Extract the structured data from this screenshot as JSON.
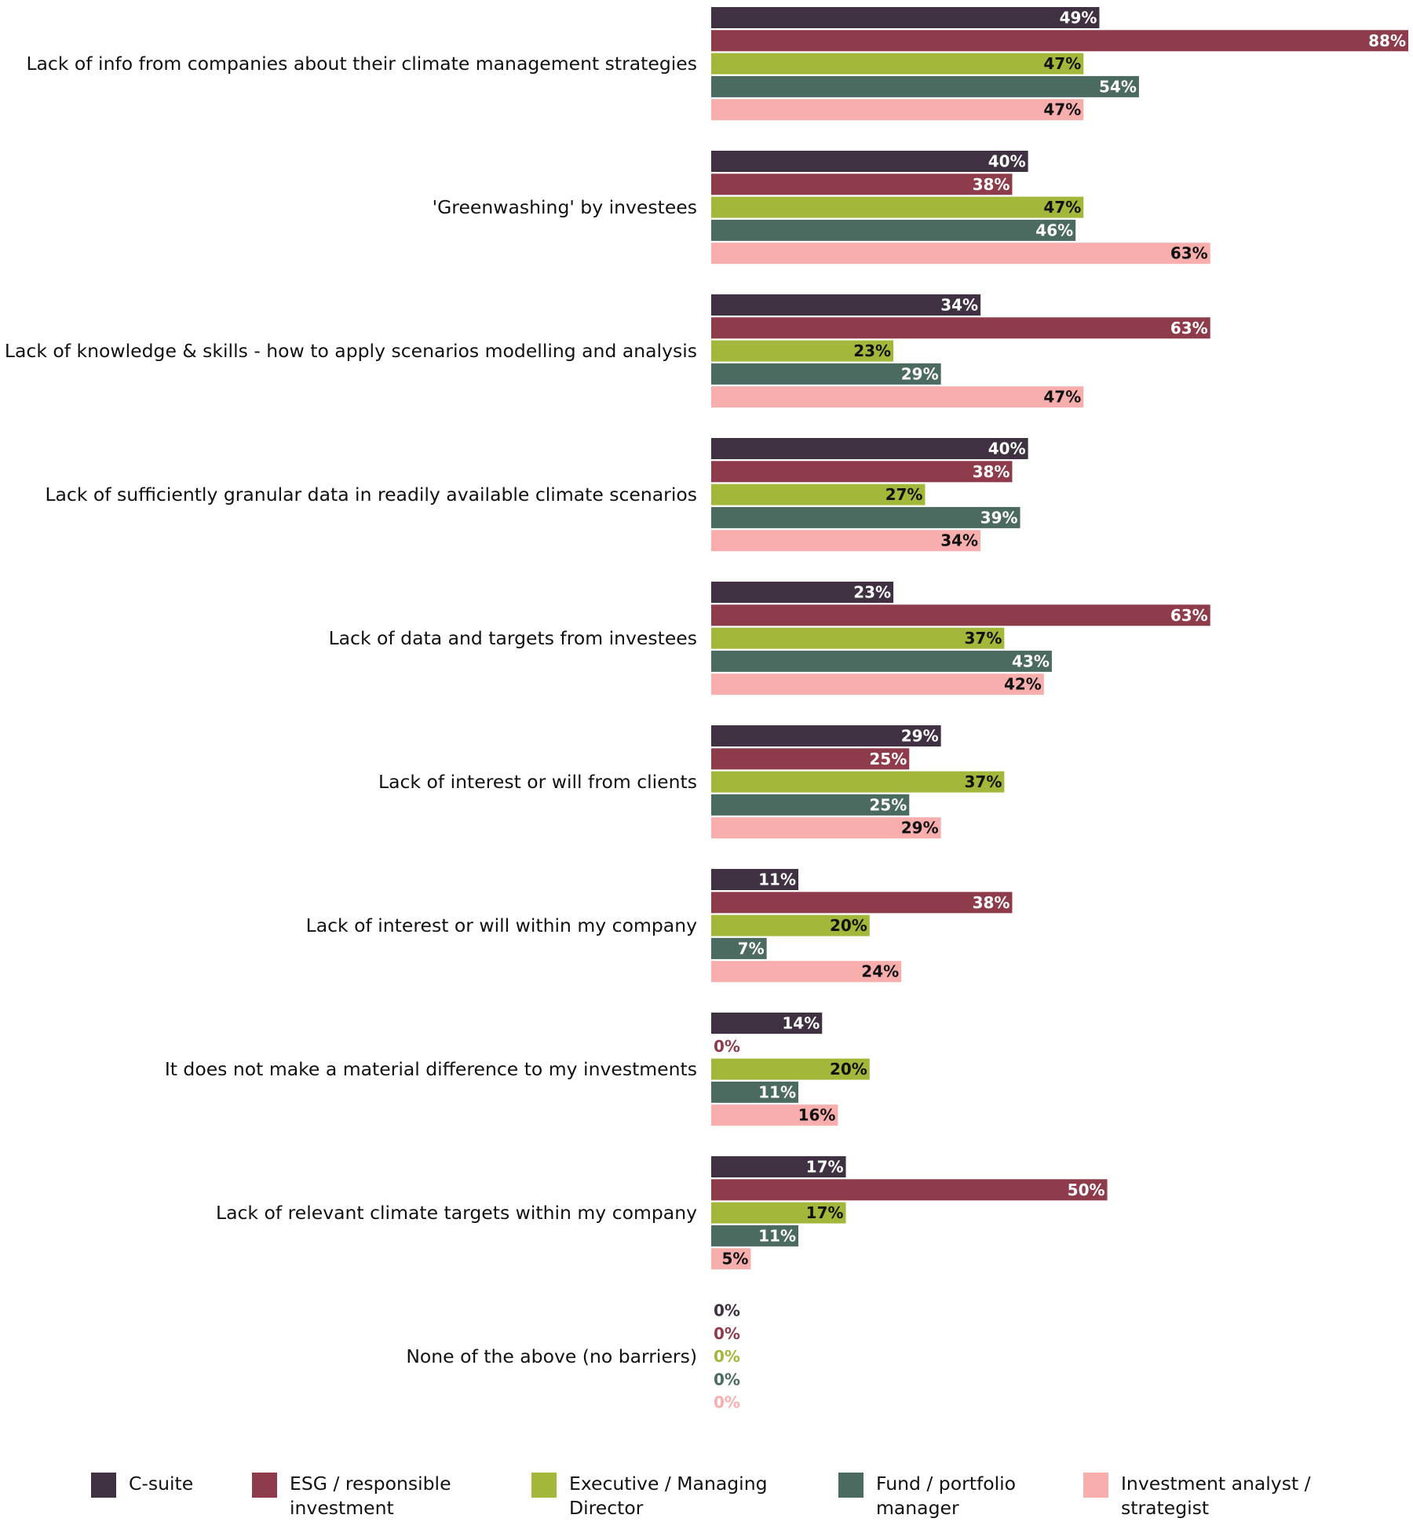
{
  "chart_data": {
    "type": "bar",
    "orientation": "horizontal",
    "categories": [
      "Lack of info from companies about their climate management strategies",
      "'Greenwashing' by investees",
      "Lack of knowledge & skills - how to apply scenarios modelling and analysis",
      "Lack of sufficiently granular data in readily available climate scenarios",
      "Lack of data and targets from investees",
      "Lack of interest or will from clients",
      "Lack of interest or will within my company",
      "It does not make a material difference to my investments",
      "Lack of relevant climate targets within my company",
      "None of the above (no barriers)"
    ],
    "series": [
      {
        "name": "C-suite",
        "color": "#3f3042",
        "label_color": "#ffffff",
        "values": [
          49,
          40,
          34,
          40,
          23,
          29,
          11,
          14,
          17,
          0
        ]
      },
      {
        "name": "ESG / responsible investment",
        "color": "#8e3b4b",
        "label_color": "#ffffff",
        "values": [
          88,
          38,
          63,
          38,
          63,
          25,
          38,
          0,
          50,
          0
        ]
      },
      {
        "name": "Executive / Managing Director",
        "color": "#a3b83a",
        "label_color": "#111111",
        "values": [
          47,
          47,
          23,
          27,
          37,
          37,
          20,
          20,
          17,
          0
        ]
      },
      {
        "name": "Fund / portfolio manager",
        "color": "#4b6a60",
        "label_color": "#ffffff",
        "values": [
          54,
          46,
          29,
          39,
          43,
          25,
          7,
          11,
          11,
          0
        ]
      },
      {
        "name": "Investment analyst / strategist",
        "color": "#f9aeae",
        "label_color": "#111111",
        "values": [
          47,
          63,
          47,
          34,
          42,
          29,
          24,
          16,
          5,
          0
        ]
      }
    ],
    "legend_lines": [
      [
        "C-suite"
      ],
      [
        "ESG / responsible",
        "investment"
      ],
      [
        "Executive / Managing",
        "Director"
      ],
      [
        "Fund / portfolio",
        "manager"
      ],
      [
        "Investment analyst /",
        "strategist"
      ]
    ],
    "value_suffix": "%",
    "xlim": [
      0,
      88
    ],
    "grid": false,
    "legend_position": "bottom",
    "title": "",
    "xlabel": "",
    "ylabel": ""
  }
}
